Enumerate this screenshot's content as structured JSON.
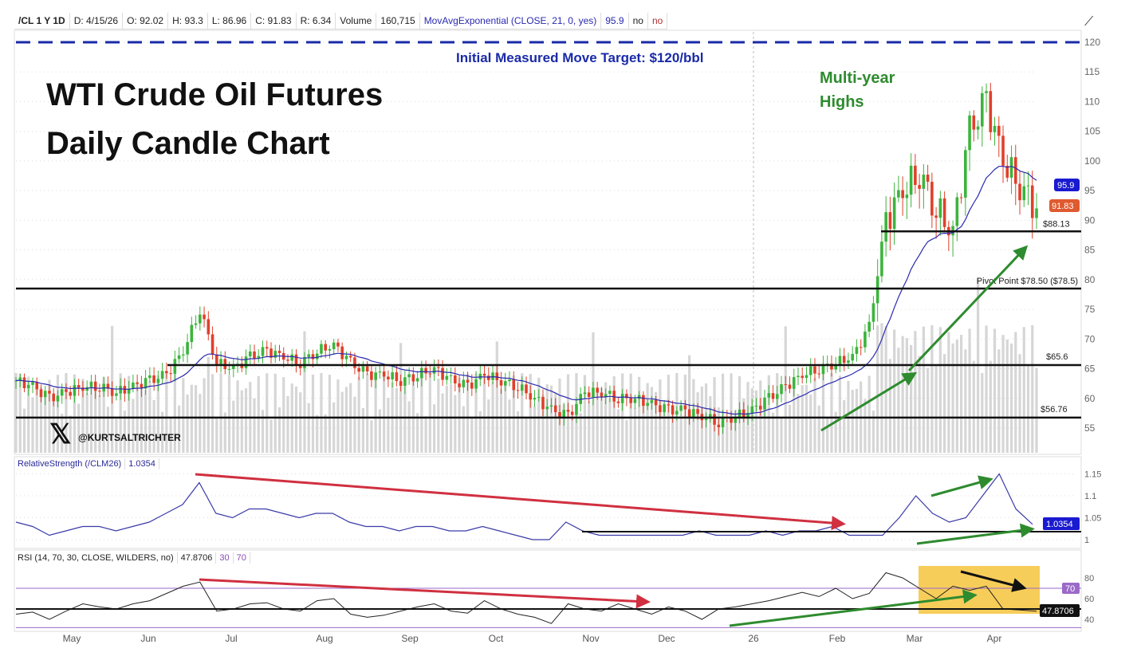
{
  "header": {
    "symbol": "/CL 1 Y 1D",
    "date": "D: 4/15/26",
    "open": "O: 92.02",
    "high": "H: 93.3",
    "low": "L: 86.96",
    "close": "C: 91.83",
    "range": "R: 6.34",
    "volume_label": "Volume",
    "volume": "160,715",
    "study": "MovAvgExponential (CLOSE, 21, 0, yes)",
    "study_value": "95.9",
    "opt1": "no",
    "opt2": "no"
  },
  "annotations": {
    "title_line1": "WTI Crude Oil Futures",
    "title_line2": "Daily Candle Chart",
    "target": "Initial Measured Move Target: $120/bbl",
    "multi_year_1": "Multi-year",
    "multi_year_2": "Highs",
    "level_88": "$88.13",
    "pivot": "Pivot Point $78.50 ($78.5)",
    "level_65": "$65.6",
    "level_56": "$56.76",
    "handle": "@KURTSALTRICHTER"
  },
  "colors": {
    "up": "#3cb43c",
    "down": "#e0402a",
    "ema": "#2a2ab0",
    "target": "#1a2aa8",
    "green_arrow": "#2e8b2e",
    "red_arrow": "#d03040",
    "highlight": "#f5c030"
  },
  "chart_data": [
    {
      "type": "candlestick",
      "title": "WTI Crude Oil Futures Daily Candle Chart",
      "x_tick_labels": [
        "May",
        "Jun",
        "Jul",
        "Aug",
        "Sep",
        "Oct",
        "Nov",
        "Dec",
        "26",
        "Feb",
        "Mar",
        "Apr"
      ],
      "y_ticks": [
        55,
        60,
        65,
        70,
        75,
        80,
        85,
        90,
        95,
        100,
        105,
        110,
        115,
        120
      ],
      "ylim": [
        52,
        121
      ],
      "weekly_closes": [
        63,
        62,
        60,
        61,
        62,
        62,
        61,
        62,
        63,
        64,
        68,
        75,
        66,
        65,
        67,
        68,
        67,
        66,
        68,
        69,
        66,
        64,
        64,
        63,
        64,
        65,
        63,
        62,
        64,
        63,
        62,
        60,
        58,
        57,
        61,
        61,
        60,
        60,
        59,
        58,
        58,
        57,
        56,
        57,
        58,
        60,
        62,
        64,
        65,
        66,
        67,
        72,
        90,
        95,
        98,
        92,
        88,
        105,
        110,
        100,
        96,
        92
      ],
      "levels": [
        120,
        88.13,
        78.5,
        65.6,
        56.76
      ],
      "last_price": "91.83",
      "ema_value": "95.9"
    },
    {
      "type": "line",
      "label": "RelativeStrength (/CLM26)",
      "value": "1.0354",
      "y_ticks": [
        "1",
        "1.05",
        "1.1",
        "1.15"
      ],
      "ylim": [
        0.99,
        1.16
      ],
      "values": [
        1.04,
        1.03,
        1.01,
        1.02,
        1.03,
        1.03,
        1.02,
        1.03,
        1.04,
        1.06,
        1.08,
        1.13,
        1.06,
        1.05,
        1.07,
        1.07,
        1.06,
        1.05,
        1.06,
        1.06,
        1.04,
        1.03,
        1.03,
        1.02,
        1.03,
        1.03,
        1.02,
        1.02,
        1.03,
        1.02,
        1.01,
        1.0,
        1.0,
        1.04,
        1.02,
        1.01,
        1.01,
        1.01,
        1.01,
        1.01,
        1.01,
        1.02,
        1.01,
        1.01,
        1.01,
        1.02,
        1.01,
        1.02,
        1.02,
        1.03,
        1.01,
        1.01,
        1.01,
        1.05,
        1.1,
        1.06,
        1.04,
        1.05,
        1.1,
        1.15,
        1.07,
        1.035
      ]
    },
    {
      "type": "line",
      "label": "RSI (14, 70, 30, CLOSE, WILDERS, no)",
      "value": "47.8706",
      "bands": [
        "30",
        "70"
      ],
      "y_ticks": [
        "40",
        "60",
        "80"
      ],
      "ylim": [
        30,
        90
      ],
      "values": [
        45,
        47,
        40,
        48,
        55,
        52,
        50,
        55,
        58,
        65,
        72,
        76,
        48,
        50,
        55,
        56,
        50,
        48,
        58,
        60,
        45,
        42,
        44,
        48,
        52,
        55,
        48,
        46,
        58,
        50,
        45,
        42,
        36,
        55,
        50,
        48,
        55,
        50,
        45,
        52,
        48,
        40,
        50,
        52,
        55,
        58,
        62,
        66,
        62,
        70,
        60,
        65,
        85,
        80,
        70,
        60,
        72,
        68,
        72,
        50,
        49,
        47.87
      ]
    }
  ]
}
